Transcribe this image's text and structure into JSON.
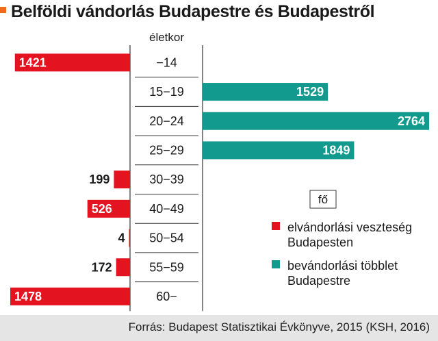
{
  "title": "Belföldi vándorlás Budapestre és Budapestről",
  "source": "Forrás: Budapest Statisztikai Évkönyve, 2015 (KSH, 2016)",
  "colors": {
    "loss": "#e3141f",
    "gain": "#139a8f",
    "accent": "#f26a1b"
  },
  "chart_data": {
    "type": "bar",
    "orientation": "horizontal-diverging",
    "category_header": "életkor",
    "unit": "fő",
    "categories": [
      "−14",
      "15−19",
      "20−24",
      "25−29",
      "30−39",
      "40−49",
      "50−54",
      "55−59",
      "60−"
    ],
    "series": [
      {
        "name": "elvándorlási veszteség Budapesten",
        "color": "#e3141f",
        "side": "left",
        "values": [
          1421,
          null,
          null,
          null,
          199,
          526,
          4,
          172,
          1478
        ]
      },
      {
        "name": "bevándorlási többlet Budapestre",
        "color": "#139a8f",
        "side": "right",
        "values": [
          null,
          1529,
          2764,
          1849,
          null,
          null,
          null,
          null,
          null
        ]
      }
    ],
    "legend_lines": [
      [
        "elvándorlási veszteség",
        "Budapesten"
      ],
      [
        "bevándorlási többlet",
        "Budapestre"
      ]
    ],
    "legend_position": "bottom-right",
    "grid": true
  }
}
